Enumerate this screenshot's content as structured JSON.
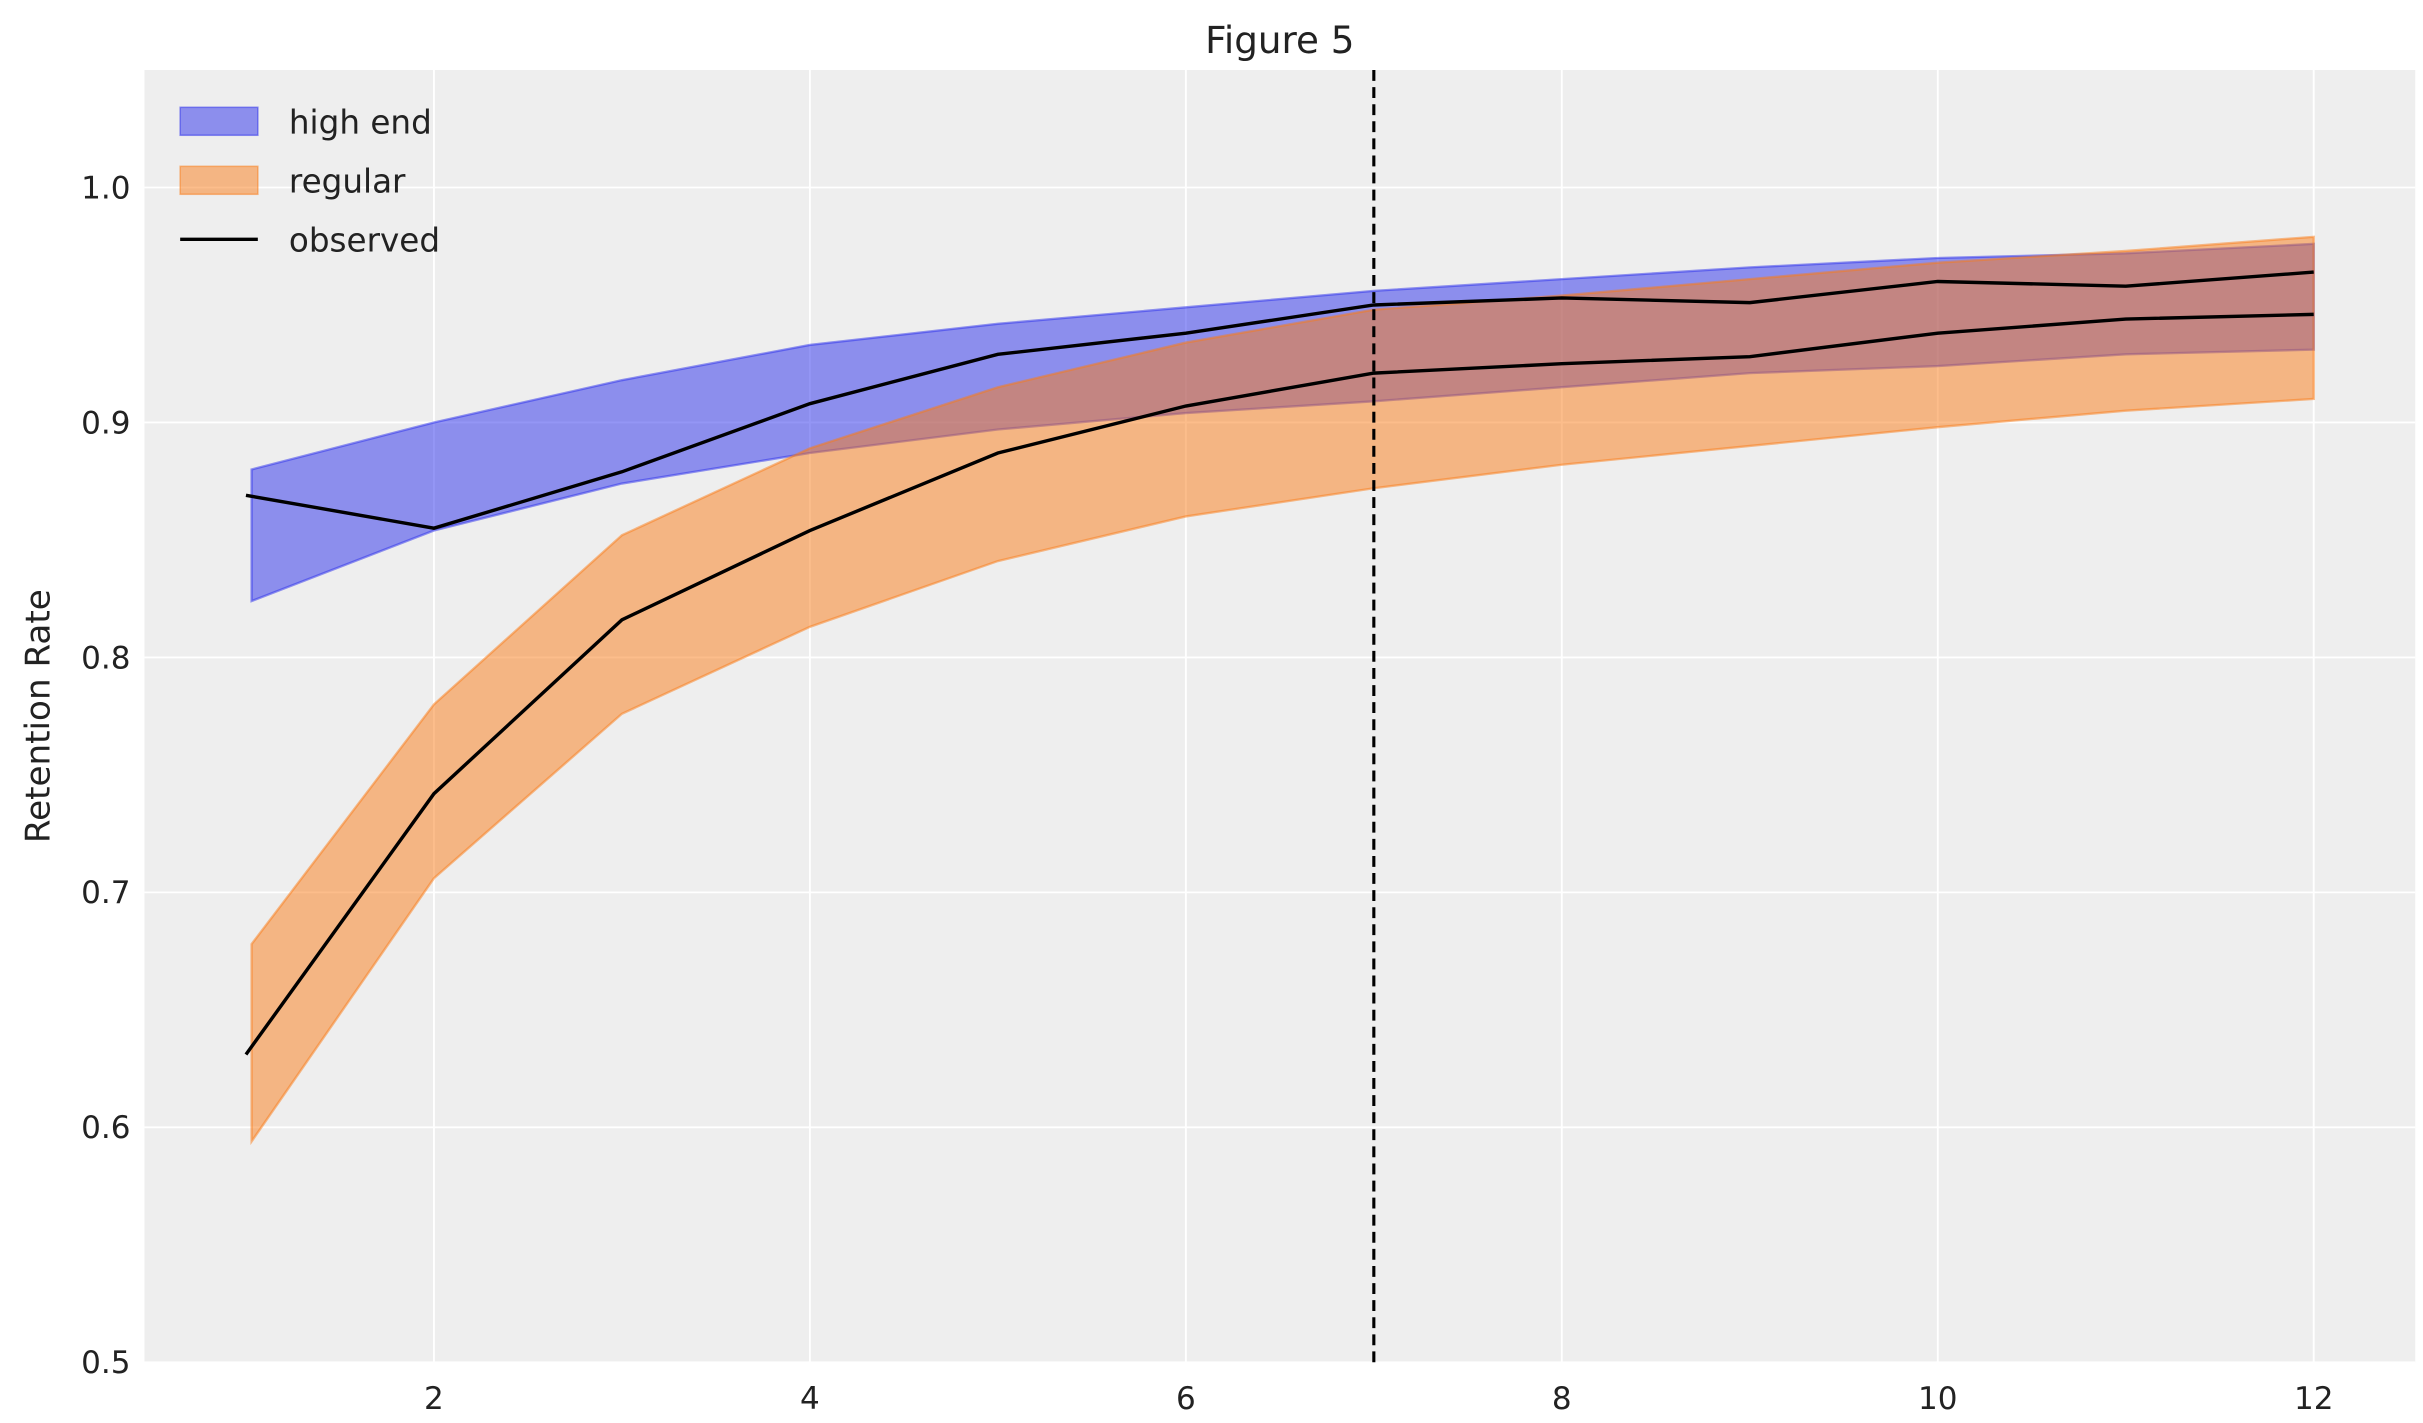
{
  "chart_data": {
    "type": "area",
    "title": "Figure 5",
    "xlabel": "",
    "ylabel": "Retention Rate",
    "xlim": [
      0.46,
      12.54
    ],
    "ylim": [
      0.5,
      1.05
    ],
    "xticks": [
      2,
      4,
      6,
      8,
      10,
      12
    ],
    "yticks": [
      0.5,
      0.6,
      0.7,
      0.8,
      0.9,
      1.0
    ],
    "ytick_labels": [
      "0.5",
      "0.6",
      "0.7",
      "0.8",
      "0.9",
      "1.0"
    ],
    "grid": true,
    "legend_placement": "top-left",
    "vline": {
      "x": 7,
      "style": "dashed",
      "color": "#000000"
    },
    "x": [
      1,
      2,
      3,
      4,
      5,
      6,
      7,
      8,
      9,
      10,
      11,
      12
    ],
    "bands": [
      {
        "name": "high end",
        "color": "#2a2eec",
        "upper": [
          0.88,
          0.9,
          0.918,
          0.933,
          0.942,
          0.949,
          0.956,
          0.961,
          0.966,
          0.97,
          0.972,
          0.976
        ],
        "lower": [
          0.824,
          0.854,
          0.874,
          0.887,
          0.897,
          0.904,
          0.909,
          0.915,
          0.921,
          0.924,
          0.929,
          0.931
        ]
      },
      {
        "name": "regular",
        "color": "#fa7c17",
        "upper": [
          0.678,
          0.78,
          0.852,
          0.889,
          0.915,
          0.934,
          0.948,
          0.954,
          0.961,
          0.968,
          0.973,
          0.979
        ],
        "lower": [
          0.594,
          0.706,
          0.776,
          0.813,
          0.841,
          0.86,
          0.872,
          0.882,
          0.89,
          0.898,
          0.905,
          0.91
        ]
      }
    ],
    "series": [
      {
        "name": "observed",
        "color": "#000000",
        "values": [
          0.869,
          0.855,
          0.879,
          0.908,
          0.929,
          0.938,
          0.95,
          0.953,
          0.951,
          0.96,
          0.958,
          0.964
        ]
      },
      {
        "color": "#000000",
        "values": [
          0.631,
          0.742,
          0.816,
          0.854,
          0.887,
          0.907,
          0.921,
          0.925,
          0.928,
          0.938,
          0.944,
          0.946
        ]
      }
    ],
    "legend": [
      {
        "label": "high end",
        "kind": "patch",
        "color": "#2a2eec"
      },
      {
        "label": "regular",
        "kind": "patch",
        "color": "#fa7c17"
      },
      {
        "label": "observed",
        "kind": "line",
        "color": "#000000"
      }
    ],
    "background": "#eeeeee"
  }
}
